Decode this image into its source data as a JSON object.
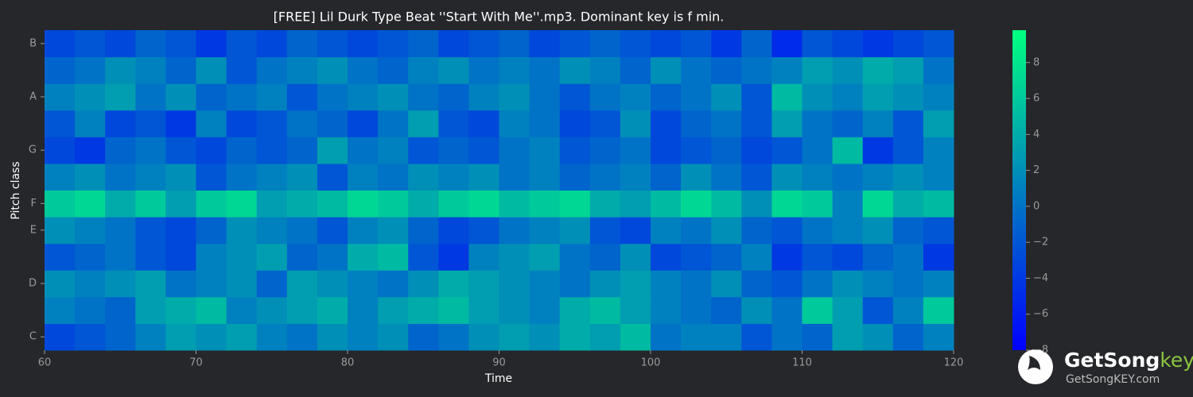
{
  "chart_data": {
    "type": "heatmap",
    "title": "[FREE] Lil Durk Type Beat ''Start With Me''.mp3. Dominant key is f min.",
    "xlabel": "Time",
    "ylabel": "Pitch class",
    "x_edges": [
      60,
      62,
      64,
      66,
      68,
      70,
      72,
      74,
      76,
      78,
      80,
      82,
      84,
      86,
      88,
      90,
      92,
      94,
      96,
      98,
      100,
      102,
      104,
      106,
      108,
      110,
      112,
      114,
      116,
      118,
      120
    ],
    "xlim": [
      60,
      120
    ],
    "xticks": [
      60,
      70,
      80,
      90,
      100,
      110,
      120
    ],
    "categories": [
      "C",
      null,
      "D",
      null,
      "E",
      "F",
      null,
      "G",
      null,
      "A",
      null,
      "B"
    ],
    "values": [
      [
        -3,
        -2,
        -1,
        1,
        3,
        2,
        3,
        1,
        0,
        2,
        1,
        2,
        -1,
        0,
        2,
        3,
        2,
        4,
        3,
        5,
        0,
        1,
        1,
        -2,
        0,
        -1,
        3,
        2,
        -1,
        1
      ],
      [
        1,
        0,
        -1,
        3,
        4,
        5,
        1,
        2,
        3,
        4,
        1,
        3,
        4,
        5,
        3,
        2,
        1,
        4,
        5,
        3,
        1,
        0,
        -1,
        2,
        0,
        6,
        3,
        -2,
        1,
        6
      ],
      [
        2,
        1,
        2,
        3,
        0,
        1,
        2,
        -1,
        3,
        2,
        1,
        0,
        2,
        4,
        3,
        2,
        1,
        0,
        2,
        3,
        1,
        0,
        2,
        -1,
        -2,
        0,
        2,
        1,
        0,
        1
      ],
      [
        -2,
        -1,
        0,
        -2,
        -3,
        1,
        2,
        3,
        -1,
        0,
        4,
        5,
        -2,
        -4,
        1,
        2,
        3,
        0,
        -1,
        2,
        -3,
        -2,
        -1,
        1,
        -4,
        -2,
        -3,
        -1,
        0,
        -4
      ],
      [
        2,
        1,
        0,
        -2,
        -3,
        -1,
        2,
        1,
        0,
        -2,
        1,
        2,
        -1,
        -3,
        -2,
        0,
        1,
        2,
        -2,
        -3,
        1,
        0,
        2,
        -1,
        -2,
        0,
        1,
        2,
        -1,
        -2
      ],
      [
        6,
        7,
        4,
        6,
        3,
        6,
        7,
        3,
        4,
        5,
        7,
        6,
        4,
        6,
        7,
        5,
        6,
        7,
        4,
        3,
        5,
        7,
        5,
        2,
        7,
        6,
        1,
        7,
        4,
        5
      ],
      [
        1,
        2,
        0,
        1,
        2,
        -2,
        0,
        1,
        2,
        -2,
        1,
        0,
        2,
        1,
        2,
        0,
        1,
        -1,
        0,
        1,
        -1,
        2,
        0,
        -2,
        2,
        1,
        0,
        1,
        2,
        1
      ],
      [
        -3,
        -4,
        -1,
        0,
        -2,
        -3,
        -1,
        -2,
        -1,
        3,
        0,
        1,
        -2,
        -1,
        -2,
        0,
        1,
        -2,
        -1,
        0,
        -3,
        -2,
        -1,
        -3,
        -2,
        0,
        5,
        -4,
        -2,
        1
      ],
      [
        -2,
        1,
        -3,
        -2,
        -4,
        1,
        -3,
        -2,
        0,
        -1,
        -3,
        0,
        3,
        -2,
        -3,
        1,
        0,
        -3,
        -2,
        2,
        -3,
        -1,
        0,
        -2,
        3,
        0,
        -1,
        1,
        -2,
        3
      ],
      [
        1,
        2,
        3,
        0,
        2,
        -1,
        0,
        1,
        -2,
        0,
        1,
        2,
        0,
        -1,
        1,
        2,
        0,
        -2,
        0,
        1,
        -1,
        0,
        2,
        -2,
        5,
        2,
        1,
        3,
        2,
        1
      ],
      [
        -1,
        0,
        2,
        1,
        -1,
        2,
        -2,
        0,
        1,
        2,
        0,
        -1,
        1,
        2,
        0,
        1,
        0,
        2,
        1,
        -1,
        2,
        0,
        -1,
        0,
        1,
        3,
        2,
        4,
        3,
        0
      ],
      [
        -3,
        -2,
        -3,
        -1,
        -2,
        -4,
        -2,
        -3,
        -1,
        -2,
        -3,
        -2,
        -1,
        -3,
        -2,
        -1,
        -3,
        -2,
        -1,
        -2,
        -3,
        -2,
        -4,
        -1,
        -5,
        -2,
        -3,
        -4,
        -3,
        -2
      ]
    ],
    "colormap": "winter",
    "zlim": [
      -8,
      9.8
    ],
    "zticks": [
      {
        "value": -8,
        "label": "−8"
      },
      {
        "value": -6,
        "label": "−6"
      },
      {
        "value": -4,
        "label": "−4"
      },
      {
        "value": -2,
        "label": "−2"
      },
      0,
      2,
      4,
      6,
      8
    ]
  },
  "watermark": {
    "brand_main": "GetSong",
    "brand_accent": "key",
    "url": "GetSongKEY.com"
  }
}
